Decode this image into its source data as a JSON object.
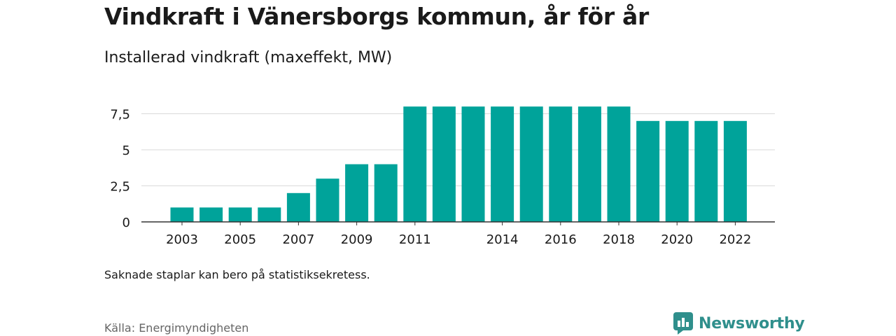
{
  "title": "Vindkraft i Vänersborgs kommun, år för år",
  "subtitle": "Installerad vindkraft (maxeffekt, MW)",
  "note": "Saknade staplar kan bero på statistiksekretess.",
  "source": "Källa: Energimyndigheten",
  "brand": {
    "name": "Newsworthy",
    "icon": "newsworthy-logo-icon",
    "color": "#2f8f8c"
  },
  "colors": {
    "bar": "#00a39a",
    "grid": "#d9d9d9",
    "axis": "#333333"
  },
  "chart_data": {
    "type": "bar",
    "categories": [
      "2003",
      "2004",
      "2005",
      "2006",
      "2007",
      "2008",
      "2009",
      "2010",
      "2011",
      "2012",
      "2013",
      "2014",
      "2015",
      "2016",
      "2017",
      "2018",
      "2019",
      "2020",
      "2021",
      "2022"
    ],
    "values": [
      1,
      1,
      1,
      1,
      2,
      3,
      4,
      4,
      8,
      8,
      8,
      8,
      8,
      8,
      8,
      8,
      7,
      7,
      7,
      7
    ],
    "x_tick_labels": [
      "2003",
      "2005",
      "2007",
      "2009",
      "2011",
      "2014",
      "2016",
      "2018",
      "2020",
      "2022"
    ],
    "y_ticks": [
      0,
      2.5,
      5,
      7.5
    ],
    "y_tick_labels": [
      "0",
      "2,5",
      "5",
      "7,5"
    ],
    "ylim": [
      0,
      8
    ],
    "grid": true,
    "legend": "none"
  }
}
